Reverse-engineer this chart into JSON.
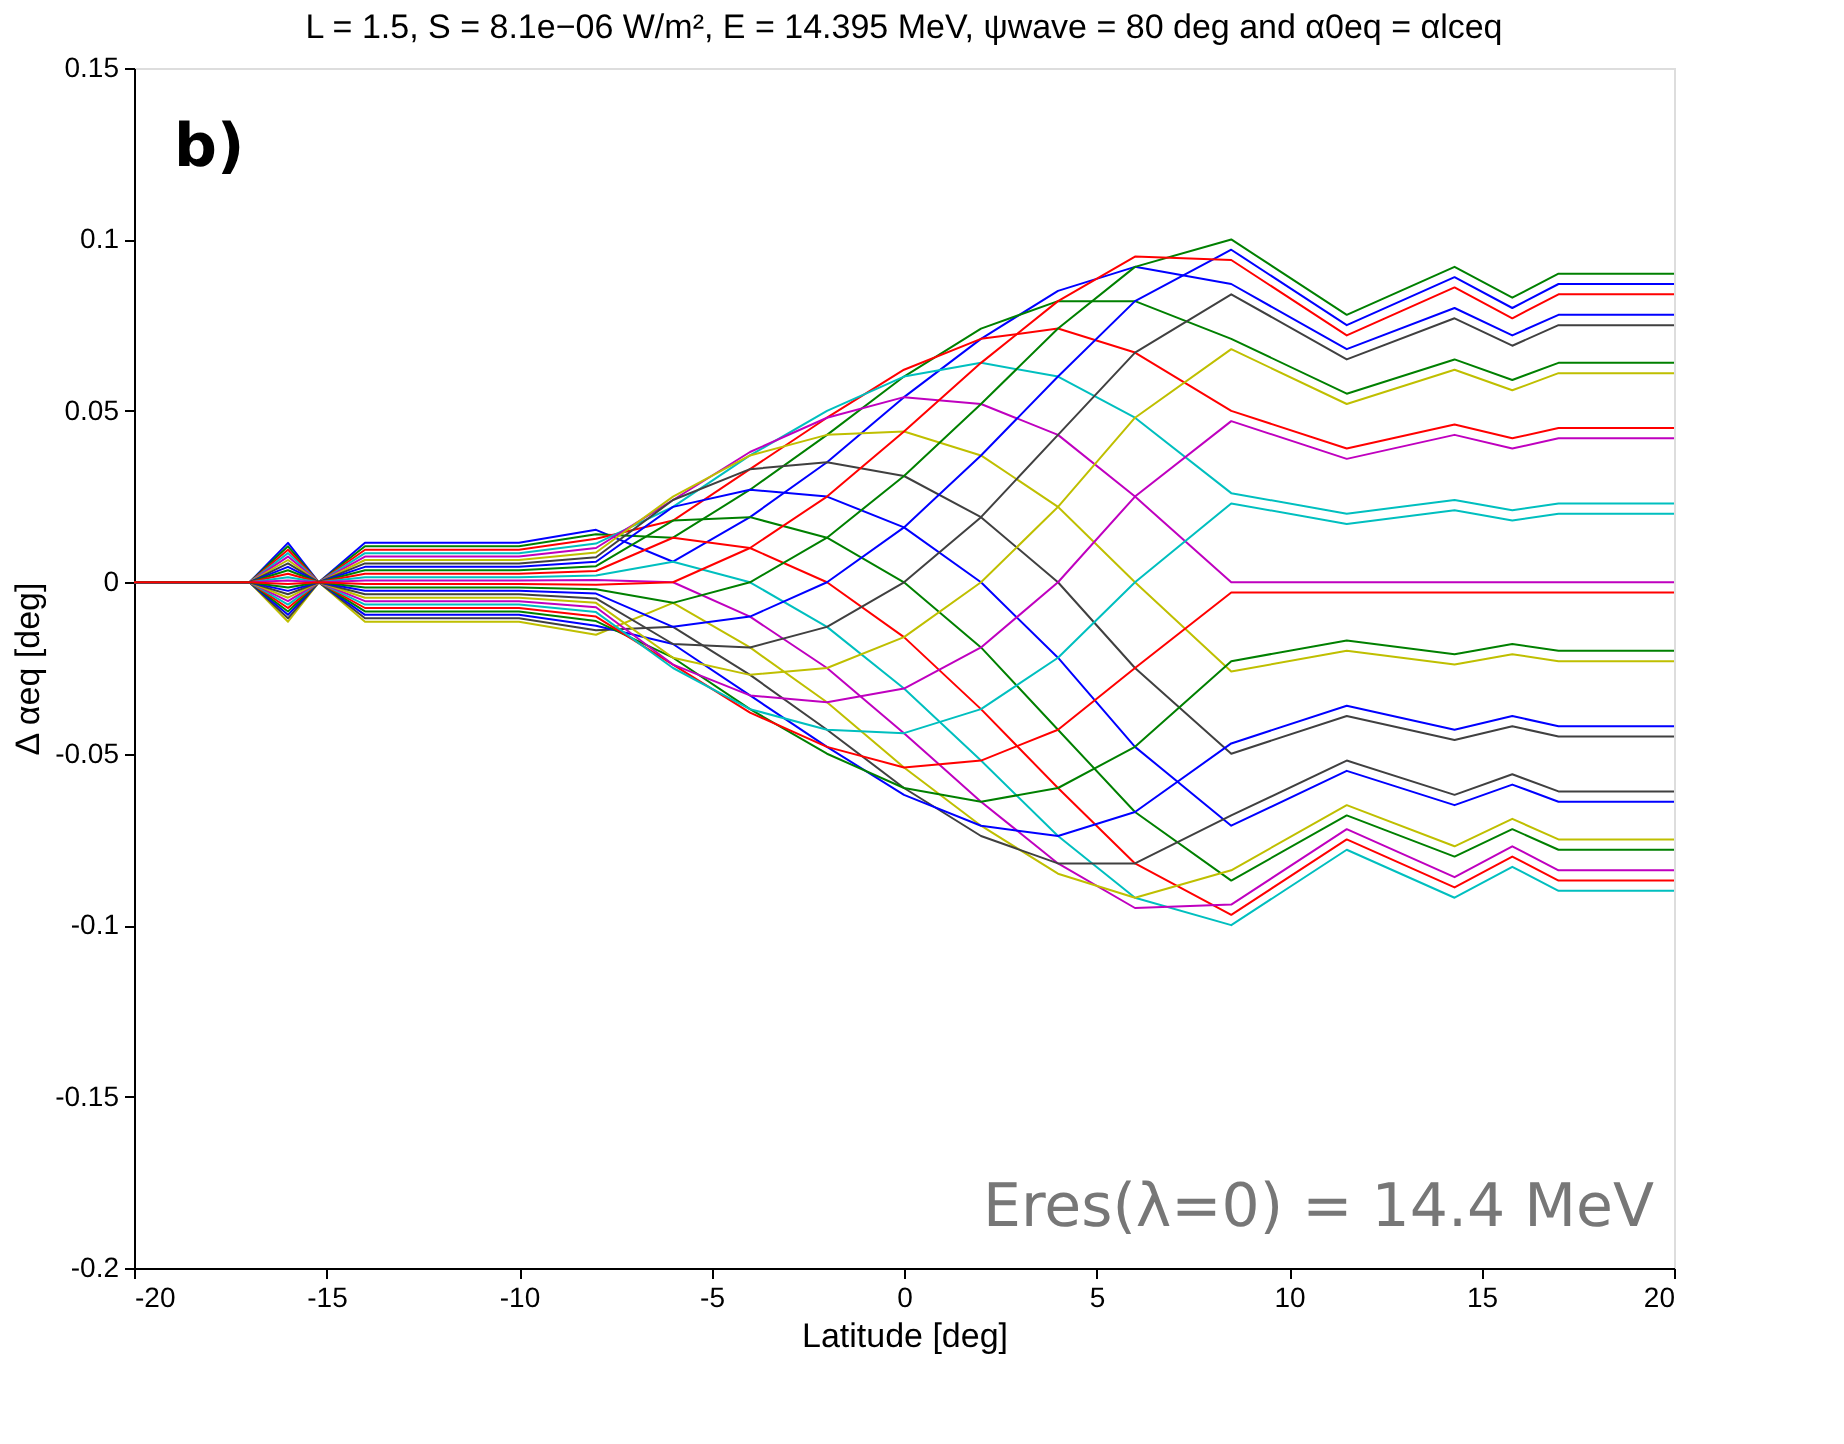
{
  "chart_data": {
    "type": "line",
    "title": "L = 1.5, S = 8.1e−06 W/m², E = 14.395 MeV, ψwave = 80 deg and α0eq = αlceq",
    "xlabel": "Latitude [deg]",
    "ylabel": "Δ αeq [deg]",
    "annotations": [
      "b)",
      "Eres(λ=0) = 14.4 MeV"
    ],
    "x": [
      -20,
      -17,
      -16,
      -15.2,
      -14,
      -12,
      -10,
      -8,
      -6,
      -4,
      -2,
      0,
      2,
      4,
      6,
      8.5,
      11.5,
      14.3,
      15.8,
      17,
      20
    ],
    "xlim": [
      -20,
      20
    ],
    "xticks": [
      -20,
      -15,
      -10,
      -5,
      0,
      5,
      10,
      15,
      20
    ],
    "ylim": [
      -0.2,
      0.15
    ],
    "yticks": [
      -0.2,
      -0.15,
      -0.1,
      -0.05,
      0,
      0.05,
      0.1,
      0.15
    ],
    "grid": false,
    "legend": false,
    "marker": "none",
    "line_style": "solid",
    "series": [
      {
        "color": "#0000ff",
        "values": [
          0,
          0,
          0.0115,
          0,
          0.0115,
          0.0115,
          0.0115,
          0.0153,
          0.006,
          0.019,
          0.035,
          0.054,
          0.071,
          0.085,
          0.092,
          0.087,
          0.068,
          0.08,
          0.072,
          0.078,
          0.078
        ]
      },
      {
        "color": "#008000",
        "values": [
          0,
          0,
          0.0105,
          0,
          0.0105,
          0.0105,
          0.0105,
          0.014,
          0.013,
          0.027,
          0.043,
          0.06,
          0.074,
          0.082,
          0.082,
          0.071,
          0.055,
          0.065,
          0.059,
          0.064,
          0.064
        ]
      },
      {
        "color": "#ff0000",
        "values": [
          0,
          0,
          0.0095,
          0,
          0.0095,
          0.0095,
          0.0095,
          0.0127,
          0.018,
          0.033,
          0.048,
          0.062,
          0.071,
          0.074,
          0.067,
          0.05,
          0.039,
          0.046,
          0.042,
          0.045,
          0.045
        ]
      },
      {
        "color": "#00bfbf",
        "values": [
          0,
          0,
          0.0085,
          0,
          0.0085,
          0.0085,
          0.0085,
          0.0113,
          0.022,
          0.037,
          0.05,
          0.06,
          0.064,
          0.06,
          0.048,
          0.026,
          0.02,
          0.024,
          0.021,
          0.023,
          0.023
        ]
      },
      {
        "color": "#bf00bf",
        "values": [
          0,
          0,
          0.0075,
          0,
          0.0075,
          0.0075,
          0.0075,
          0.01,
          0.024,
          0.038,
          0.048,
          0.054,
          0.052,
          0.043,
          0.025,
          0,
          0,
          0,
          0,
          0,
          0
        ]
      },
      {
        "color": "#bfbf00",
        "values": [
          0,
          0,
          0.0065,
          0,
          0.0065,
          0.0065,
          0.0065,
          0.0087,
          0.025,
          0.037,
          0.043,
          0.044,
          0.037,
          0.022,
          0,
          -0.026,
          -0.02,
          -0.024,
          -0.021,
          -0.023,
          -0.023
        ]
      },
      {
        "color": "#404040",
        "values": [
          0,
          0,
          0.0055,
          0,
          0.0055,
          0.0055,
          0.0055,
          0.0073,
          0.024,
          0.033,
          0.035,
          0.031,
          0.019,
          0,
          -0.025,
          -0.05,
          -0.039,
          -0.046,
          -0.042,
          -0.045,
          -0.045
        ]
      },
      {
        "color": "#0000ff",
        "values": [
          0,
          0,
          0.0045,
          0,
          0.0045,
          0.0045,
          0.0045,
          0.006,
          0.022,
          0.027,
          0.025,
          0.016,
          0,
          -0.022,
          -0.048,
          -0.071,
          -0.055,
          -0.065,
          -0.059,
          -0.064,
          -0.064
        ]
      },
      {
        "color": "#008000",
        "values": [
          0,
          0,
          0.0035,
          0,
          0.0035,
          0.0035,
          0.0035,
          0.0047,
          0.018,
          0.019,
          0.013,
          0,
          -0.019,
          -0.043,
          -0.067,
          -0.087,
          -0.068,
          -0.08,
          -0.072,
          -0.078,
          -0.078
        ]
      },
      {
        "color": "#ff0000",
        "values": [
          0,
          0,
          0.0025,
          0,
          0.0025,
          0.0025,
          0.0025,
          0.0033,
          0.013,
          0.01,
          0,
          -0.016,
          -0.037,
          -0.06,
          -0.082,
          -0.097,
          -0.075,
          -0.089,
          -0.08,
          -0.087,
          -0.087
        ]
      },
      {
        "color": "#00bfbf",
        "values": [
          0,
          0,
          0.0015,
          0,
          0.0015,
          0.0015,
          0.0015,
          0.002,
          0.006,
          0,
          -0.013,
          -0.031,
          -0.052,
          -0.074,
          -0.092,
          -0.1,
          -0.078,
          -0.092,
          -0.083,
          -0.09,
          -0.09
        ]
      },
      {
        "color": "#bf00bf",
        "values": [
          0,
          0,
          0.0005,
          0,
          0.0005,
          0.0005,
          0.0005,
          0.0007,
          0,
          -0.01,
          -0.025,
          -0.044,
          -0.064,
          -0.082,
          -0.095,
          -0.094,
          -0.072,
          -0.086,
          -0.077,
          -0.084,
          -0.084
        ]
      },
      {
        "color": "#bfbf00",
        "values": [
          0,
          0,
          -0.0115,
          0,
          -0.0115,
          -0.0115,
          -0.0115,
          -0.0153,
          -0.006,
          -0.019,
          -0.035,
          -0.054,
          -0.071,
          -0.085,
          -0.092,
          -0.084,
          -0.065,
          -0.077,
          -0.069,
          -0.075,
          -0.075
        ]
      },
      {
        "color": "#404040",
        "values": [
          0,
          0,
          -0.0105,
          0,
          -0.0105,
          -0.0105,
          -0.0105,
          -0.014,
          -0.013,
          -0.027,
          -0.043,
          -0.06,
          -0.074,
          -0.082,
          -0.082,
          -0.068,
          -0.052,
          -0.062,
          -0.056,
          -0.061,
          -0.061
        ]
      },
      {
        "color": "#0000ff",
        "values": [
          0,
          0,
          -0.0095,
          0,
          -0.0095,
          -0.0095,
          -0.0095,
          -0.0127,
          -0.018,
          -0.033,
          -0.048,
          -0.062,
          -0.071,
          -0.074,
          -0.067,
          -0.047,
          -0.036,
          -0.043,
          -0.039,
          -0.042,
          -0.042
        ]
      },
      {
        "color": "#008000",
        "values": [
          0,
          0,
          -0.0085,
          0,
          -0.0085,
          -0.0085,
          -0.0085,
          -0.0113,
          -0.022,
          -0.037,
          -0.05,
          -0.06,
          -0.064,
          -0.06,
          -0.048,
          -0.023,
          -0.017,
          -0.021,
          -0.018,
          -0.02,
          -0.02
        ]
      },
      {
        "color": "#ff0000",
        "values": [
          0,
          0,
          -0.0075,
          0,
          -0.0075,
          -0.0075,
          -0.0075,
          -0.01,
          -0.024,
          -0.038,
          -0.048,
          -0.054,
          -0.052,
          -0.043,
          -0.025,
          -0.003,
          -0.003,
          -0.003,
          -0.003,
          -0.003,
          -0.003
        ]
      },
      {
        "color": "#00bfbf",
        "values": [
          0,
          0,
          -0.0065,
          0,
          -0.0065,
          -0.0065,
          -0.0065,
          -0.0087,
          -0.025,
          -0.037,
          -0.043,
          -0.044,
          -0.037,
          -0.022,
          0,
          0.023,
          0.017,
          0.021,
          0.018,
          0.02,
          0.02
        ]
      },
      {
        "color": "#bf00bf",
        "values": [
          0,
          0,
          -0.0055,
          0,
          -0.0055,
          -0.0055,
          -0.0055,
          -0.0073,
          -0.024,
          -0.033,
          -0.035,
          -0.031,
          -0.019,
          0,
          0.025,
          0.047,
          0.036,
          0.043,
          0.039,
          0.042,
          0.042
        ]
      },
      {
        "color": "#bfbf00",
        "values": [
          0,
          0,
          -0.0045,
          0,
          -0.0045,
          -0.0045,
          -0.0045,
          -0.006,
          -0.022,
          -0.027,
          -0.025,
          -0.016,
          0,
          0.022,
          0.048,
          0.068,
          0.052,
          0.062,
          0.056,
          0.061,
          0.061
        ]
      },
      {
        "color": "#404040",
        "values": [
          0,
          0,
          -0.0035,
          0,
          -0.0035,
          -0.0035,
          -0.0035,
          -0.0047,
          -0.018,
          -0.019,
          -0.013,
          0,
          0.019,
          0.043,
          0.067,
          0.084,
          0.065,
          0.077,
          0.069,
          0.075,
          0.075
        ]
      },
      {
        "color": "#0000ff",
        "values": [
          0,
          0,
          -0.0025,
          0,
          -0.0025,
          -0.0025,
          -0.0025,
          -0.0033,
          -0.013,
          -0.01,
          0,
          0.016,
          0.037,
          0.06,
          0.082,
          0.097,
          0.075,
          0.089,
          0.08,
          0.087,
          0.087
        ]
      },
      {
        "color": "#008000",
        "values": [
          0,
          0,
          -0.0015,
          0,
          -0.0015,
          -0.0015,
          -0.0015,
          -0.002,
          -0.006,
          0,
          0.013,
          0.031,
          0.052,
          0.074,
          0.092,
          0.1,
          0.078,
          0.092,
          0.083,
          0.09,
          0.09
        ]
      },
      {
        "color": "#ff0000",
        "values": [
          0,
          0,
          -0.0005,
          0,
          -0.0005,
          -0.0005,
          -0.0005,
          -0.0007,
          0,
          0.01,
          0.025,
          0.044,
          0.064,
          0.082,
          0.095,
          0.094,
          0.072,
          0.086,
          0.077,
          0.084,
          0.084
        ]
      }
    ]
  }
}
